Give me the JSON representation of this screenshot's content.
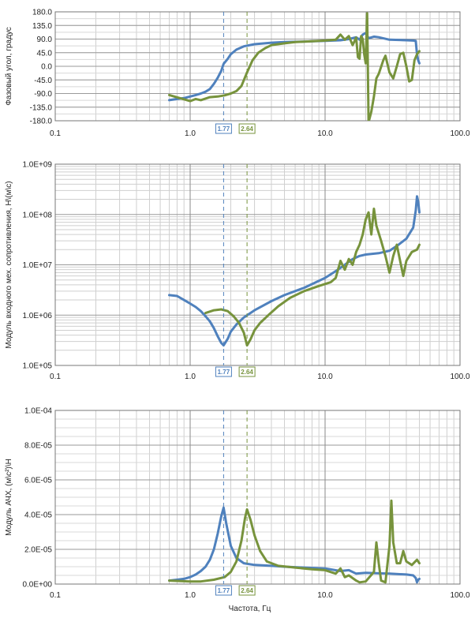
{
  "chart_data": [
    {
      "type": "line",
      "x_scale": "log",
      "xlim": [
        0.1,
        100.0
      ],
      "ylim": [
        -180,
        180
      ],
      "x_ticks": [
        "0.1",
        "1.0",
        "10.0",
        "100.0"
      ],
      "y_ticks": [
        "180.0",
        "135.0",
        "90.0",
        "45.0",
        "0.0",
        "-45.0",
        "-90.0",
        "-135.0",
        "-180.0"
      ],
      "ylabel": "Фазовый угол, градус",
      "xlabel": "",
      "grid": true,
      "markers": [
        {
          "label": "1.77",
          "x": 1.77,
          "color": "#4f81bd"
        },
        {
          "label": "2.64",
          "x": 2.64,
          "color": "#77933c"
        }
      ],
      "series": [
        {
          "color": "#4f81bd",
          "points": [
            [
              0.7,
              -112
            ],
            [
              0.8,
              -108
            ],
            [
              0.9,
              -105
            ],
            [
              1.0,
              -100
            ],
            [
              1.1,
              -95
            ],
            [
              1.2,
              -90
            ],
            [
              1.3,
              -84
            ],
            [
              1.4,
              -75
            ],
            [
              1.5,
              -58
            ],
            [
              1.6,
              -38
            ],
            [
              1.7,
              -15
            ],
            [
              1.77,
              8
            ],
            [
              1.9,
              25
            ],
            [
              2.0,
              40
            ],
            [
              2.2,
              55
            ],
            [
              2.5,
              66
            ],
            [
              3.0,
              73
            ],
            [
              4.0,
              78
            ],
            [
              5.0,
              80
            ],
            [
              7.0,
              82
            ],
            [
              10.0,
              84
            ],
            [
              13.0,
              86
            ],
            [
              15.0,
              90
            ],
            [
              17.0,
              96
            ],
            [
              18.0,
              88
            ],
            [
              19.0,
              105
            ],
            [
              20.0,
              110
            ],
            [
              21.0,
              93
            ],
            [
              23.0,
              98
            ],
            [
              25.0,
              96
            ],
            [
              30.0,
              88
            ],
            [
              35.0,
              87
            ],
            [
              40.0,
              86
            ],
            [
              45.0,
              85
            ],
            [
              47.0,
              84
            ],
            [
              48.0,
              40
            ],
            [
              49.0,
              20
            ],
            [
              50.0,
              10
            ]
          ]
        },
        {
          "color": "#77933c",
          "points": [
            [
              0.7,
              -95
            ],
            [
              1.0,
              -115
            ],
            [
              1.1,
              -108
            ],
            [
              1.2,
              -112
            ],
            [
              1.4,
              -102
            ],
            [
              1.6,
              -100
            ],
            [
              1.8,
              -96
            ],
            [
              2.0,
              -90
            ],
            [
              2.2,
              -82
            ],
            [
              2.4,
              -65
            ],
            [
              2.64,
              -20
            ],
            [
              2.9,
              20
            ],
            [
              3.2,
              45
            ],
            [
              3.6,
              60
            ],
            [
              4.0,
              70
            ],
            [
              5.0,
              76
            ],
            [
              6.0,
              80
            ],
            [
              8.0,
              83
            ],
            [
              10.0,
              85
            ],
            [
              12.0,
              88
            ],
            [
              13.0,
              105
            ],
            [
              14.0,
              88
            ],
            [
              15.0,
              100
            ],
            [
              16.0,
              70
            ],
            [
              17.0,
              95
            ],
            [
              17.5,
              30
            ],
            [
              18.0,
              25
            ],
            [
              18.5,
              100
            ],
            [
              19.0,
              90
            ],
            [
              19.5,
              40
            ],
            [
              20.0,
              10
            ],
            [
              20.5,
              175
            ],
            [
              21.0,
              -185
            ],
            [
              22.0,
              -150
            ],
            [
              23.0,
              -100
            ],
            [
              24.0,
              -40
            ],
            [
              25.0,
              -25
            ],
            [
              27.0,
              20
            ],
            [
              28.0,
              35
            ],
            [
              30.0,
              -20
            ],
            [
              32.0,
              -40
            ],
            [
              34.0,
              0
            ],
            [
              36.0,
              40
            ],
            [
              38.0,
              45
            ],
            [
              40.0,
              0
            ],
            [
              42.0,
              -50
            ],
            [
              44.0,
              -45
            ],
            [
              46.0,
              20
            ],
            [
              48.0,
              40
            ],
            [
              50.0,
              50
            ]
          ]
        }
      ]
    },
    {
      "type": "line",
      "x_scale": "log",
      "y_scale": "log",
      "xlim": [
        0.1,
        100.0
      ],
      "ylim": [
        100000,
        1000000000
      ],
      "x_ticks": [
        "0.1",
        "1.0",
        "10.0",
        "100.0"
      ],
      "y_ticks": [
        "1.0E+09",
        "1.0E+08",
        "1.0E+07",
        "1.0E+06",
        "1.0E+05"
      ],
      "ylabel": "Модуль входного мех. сопротивления, H\\(м\\с)",
      "xlabel": "",
      "grid": true,
      "markers": [
        {
          "label": "1.77",
          "x": 1.77,
          "color": "#4f81bd"
        },
        {
          "label": "2.64",
          "x": 2.64,
          "color": "#77933c"
        }
      ],
      "series": [
        {
          "color": "#4f81bd",
          "points": [
            [
              0.7,
              2500000
            ],
            [
              0.8,
              2400000
            ],
            [
              0.9,
              2000000
            ],
            [
              1.0,
              1700000
            ],
            [
              1.1,
              1450000
            ],
            [
              1.2,
              1200000
            ],
            [
              1.3,
              950000
            ],
            [
              1.4,
              750000
            ],
            [
              1.5,
              550000
            ],
            [
              1.6,
              380000
            ],
            [
              1.7,
              280000
            ],
            [
              1.77,
              250000
            ],
            [
              1.9,
              340000
            ],
            [
              2.0,
              470000
            ],
            [
              2.2,
              650000
            ],
            [
              2.5,
              900000
            ],
            [
              3.0,
              1250000
            ],
            [
              4.0,
              1900000
            ],
            [
              5.0,
              2500000
            ],
            [
              7.0,
              3500000
            ],
            [
              10.0,
              5500000
            ],
            [
              12.0,
              7500000
            ],
            [
              14.0,
              10000000
            ],
            [
              16.0,
              13000000
            ],
            [
              18.0,
              15000000
            ],
            [
              20.0,
              16000000
            ],
            [
              25.0,
              17000000
            ],
            [
              30.0,
              19000000
            ],
            [
              35.0,
              25000000
            ],
            [
              40.0,
              33000000
            ],
            [
              45.0,
              55000000
            ],
            [
              47.0,
              120000000
            ],
            [
              48.0,
              230000000
            ],
            [
              49.0,
              180000000
            ],
            [
              50.0,
              110000000
            ]
          ]
        },
        {
          "color": "#77933c",
          "points": [
            [
              1.3,
              1100000
            ],
            [
              1.5,
              1250000
            ],
            [
              1.7,
              1300000
            ],
            [
              1.9,
              1200000
            ],
            [
              2.1,
              950000
            ],
            [
              2.3,
              700000
            ],
            [
              2.5,
              450000
            ],
            [
              2.64,
              250000
            ],
            [
              2.8,
              330000
            ],
            [
              3.0,
              500000
            ],
            [
              3.3,
              700000
            ],
            [
              3.8,
              1000000
            ],
            [
              4.5,
              1500000
            ],
            [
              5.5,
              2200000
            ],
            [
              7.0,
              3000000
            ],
            [
              9.0,
              3800000
            ],
            [
              11.0,
              4500000
            ],
            [
              12.0,
              5500000
            ],
            [
              13.0,
              12000000
            ],
            [
              14.0,
              8000000
            ],
            [
              15.0,
              13000000
            ],
            [
              16.0,
              10000000
            ],
            [
              17.0,
              18000000
            ],
            [
              18.0,
              25000000
            ],
            [
              19.0,
              40000000
            ],
            [
              20.0,
              80000000
            ],
            [
              21.0,
              110000000
            ],
            [
              22.0,
              40000000
            ],
            [
              23.0,
              130000000
            ],
            [
              24.0,
              60000000
            ],
            [
              26.0,
              30000000
            ],
            [
              28.0,
              15000000
            ],
            [
              30.0,
              7000000
            ],
            [
              32.0,
              15000000
            ],
            [
              34.0,
              25000000
            ],
            [
              36.0,
              12000000
            ],
            [
              38.0,
              6000000
            ],
            [
              40.0,
              12000000
            ],
            [
              44.0,
              18000000
            ],
            [
              48.0,
              20000000
            ],
            [
              50.0,
              25000000
            ]
          ]
        }
      ]
    },
    {
      "type": "line",
      "x_scale": "log",
      "xlim": [
        0.1,
        100.0
      ],
      "ylim": [
        0,
        0.0001
      ],
      "x_ticks": [
        "0.1",
        "1.0",
        "10.0",
        "100.0"
      ],
      "y_ticks": [
        "1.0E-04",
        "8.0E-05",
        "6.0E-05",
        "4.0E-05",
        "2.0E-05",
        "0.0E+00"
      ],
      "ylabel": "Модуль АЧХ, (м\\с²)\\H",
      "xlabel": "Частота, Гц",
      "grid": true,
      "markers": [
        {
          "label": "1.77",
          "x": 1.77,
          "color": "#4f81bd"
        },
        {
          "label": "2.64",
          "x": 2.64,
          "color": "#77933c"
        }
      ],
      "series": [
        {
          "color": "#4f81bd",
          "points": [
            [
              0.7,
              2e-06
            ],
            [
              0.8,
              2.5e-06
            ],
            [
              0.9,
              3e-06
            ],
            [
              1.0,
              4e-06
            ],
            [
              1.1,
              5.5e-06
            ],
            [
              1.2,
              7.5e-06
            ],
            [
              1.3,
              1e-05
            ],
            [
              1.4,
              1.4e-05
            ],
            [
              1.5,
              2e-05
            ],
            [
              1.6,
              2.9e-05
            ],
            [
              1.7,
              3.9e-05
            ],
            [
              1.77,
              4.4e-05
            ],
            [
              1.85,
              3.5e-05
            ],
            [
              2.0,
              2.2e-05
            ],
            [
              2.2,
              1.5e-05
            ],
            [
              2.5,
              1.2e-05
            ],
            [
              3.0,
              1.1e-05
            ],
            [
              4.0,
              1.05e-05
            ],
            [
              5.0,
              1e-05
            ],
            [
              7.0,
              9.5e-06
            ],
            [
              10.0,
              9e-06
            ],
            [
              13.0,
              7.5e-06
            ],
            [
              15.0,
              8e-06
            ],
            [
              17.0,
              6e-06
            ],
            [
              20.0,
              6.5e-06
            ],
            [
              25.0,
              6.2e-06
            ],
            [
              30.0,
              6e-06
            ],
            [
              40.0,
              5.5e-06
            ],
            [
              45.0,
              5e-06
            ],
            [
              47.0,
              3.5e-06
            ],
            [
              48.0,
              1e-06
            ],
            [
              49.0,
              2.5e-06
            ],
            [
              50.0,
              3e-06
            ]
          ]
        },
        {
          "color": "#77933c",
          "points": [
            [
              0.7,
              2e-06
            ],
            [
              1.0,
              1.5e-06
            ],
            [
              1.2,
              1.5e-06
            ],
            [
              1.5,
              2.5e-06
            ],
            [
              1.8,
              4e-06
            ],
            [
              2.0,
              7e-06
            ],
            [
              2.2,
              1.3e-05
            ],
            [
              2.4,
              2.5e-05
            ],
            [
              2.55,
              3.8e-05
            ],
            [
              2.64,
              4.3e-05
            ],
            [
              2.8,
              3.7e-05
            ],
            [
              3.0,
              2.8e-05
            ],
            [
              3.3,
              1.9e-05
            ],
            [
              3.7,
              1.3e-05
            ],
            [
              4.5,
              1.05e-05
            ],
            [
              6.0,
              9.5e-06
            ],
            [
              8.0,
              8.5e-06
            ],
            [
              10.0,
              8e-06
            ],
            [
              12.0,
              6e-06
            ],
            [
              13.0,
              9e-06
            ],
            [
              14.0,
              4e-06
            ],
            [
              15.0,
              5e-06
            ],
            [
              17.0,
              2e-06
            ],
            [
              18.0,
              1e-06
            ],
            [
              20.0,
              1.5e-06
            ],
            [
              23.0,
              7e-06
            ],
            [
              24.0,
              2.4e-05
            ],
            [
              25.0,
              1.2e-05
            ],
            [
              26.0,
              2e-06
            ],
            [
              28.0,
              1e-06
            ],
            [
              30.0,
              2.2e-05
            ],
            [
              31.0,
              4.8e-05
            ],
            [
              32.0,
              2.4e-05
            ],
            [
              34.0,
              1.2e-05
            ],
            [
              36.0,
              1.2e-05
            ],
            [
              38.0,
              1.9e-05
            ],
            [
              40.0,
              1.3e-05
            ],
            [
              44.0,
              1.1e-05
            ],
            [
              48.0,
              1.4e-05
            ],
            [
              50.0,
              1.2e-05
            ]
          ]
        }
      ]
    }
  ]
}
